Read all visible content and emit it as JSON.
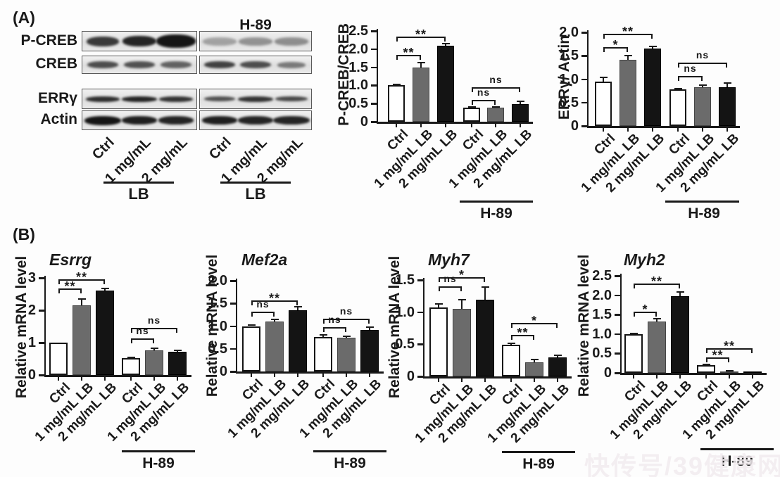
{
  "figure": {
    "panel_a_label": "(A)",
    "panel_b_label": "(B)",
    "watermark": "快传号/39健康网"
  },
  "colors": {
    "bar_white": "#ffffff",
    "bar_gray": "#6b6b6b",
    "bar_black": "#141414",
    "axis": "#1a1a1a"
  },
  "western_blot": {
    "h89_label": "H-89",
    "lb_label": "LB",
    "lane_labels": [
      "Ctrl",
      "1 mg/mL",
      "2 mg/mL"
    ],
    "rows": [
      {
        "label": "P-CREB",
        "lane_intensities": [
          0.82,
          0.92,
          1.0,
          0.3,
          0.38,
          0.4
        ]
      },
      {
        "label": "CREB",
        "lane_intensities": [
          0.72,
          0.7,
          0.62,
          0.78,
          0.72,
          0.5
        ]
      },
      {
        "label": "ERRγ",
        "lane_intensities": [
          0.88,
          0.92,
          0.85,
          0.7,
          0.85,
          0.75
        ]
      },
      {
        "label": "Actin",
        "lane_intensities": [
          1.0,
          0.95,
          0.92,
          0.95,
          0.92,
          0.92
        ]
      }
    ]
  },
  "chart_data": [
    {
      "id": "p-creb-creb",
      "type": "bar",
      "title": "",
      "ylabel": "P-CREB/CREB",
      "categories": [
        "Ctrl",
        "1 mg/mL LB",
        "2 mg/mL LB",
        "Ctrl",
        "1 mg/mL LB",
        "2 mg/mL LB"
      ],
      "values": [
        1.0,
        1.5,
        2.1,
        0.38,
        0.38,
        0.48
      ],
      "errors": [
        0.02,
        0.13,
        0.05,
        0.03,
        0.02,
        0.08
      ],
      "bar_styles": [
        "white",
        "gray",
        "black",
        "white",
        "gray",
        "black"
      ],
      "ymax": 2.5,
      "yticks": [
        {
          "v": 0,
          "label": "0"
        },
        {
          "v": 0.5,
          "label": "0.5"
        },
        {
          "v": 1,
          "label": "1.0"
        },
        {
          "v": 1.5,
          "label": "1.5"
        },
        {
          "v": 2,
          "label": "2.0"
        },
        {
          "v": 2.5,
          "label": "2.5"
        }
      ],
      "group_label": "H-89",
      "significance": [
        {
          "from": 0,
          "to": 1,
          "label": "**",
          "y": 1.84
        },
        {
          "from": 0,
          "to": 2,
          "label": "**",
          "y": 2.35
        },
        {
          "from": 3,
          "to": 4,
          "label": "ns",
          "y": 0.6
        },
        {
          "from": 3,
          "to": 5,
          "label": "ns",
          "y": 0.95
        }
      ]
    },
    {
      "id": "errg-actin",
      "type": "bar",
      "title": "",
      "ylabel": "ERRγ/ Actin",
      "categories": [
        "Ctrl",
        "1 mg/mL LB",
        "2 mg/mL LB",
        "Ctrl",
        "1 mg/mL LB",
        "2 mg/mL LB"
      ],
      "values": [
        0.95,
        1.42,
        1.65,
        0.78,
        0.82,
        0.82
      ],
      "errors": [
        0.09,
        0.08,
        0.05,
        0.02,
        0.05,
        0.1
      ],
      "bar_styles": [
        "white",
        "gray",
        "black",
        "white",
        "gray",
        "black"
      ],
      "ymax": 2.0,
      "yticks": [
        {
          "v": 0,
          "label": "0"
        },
        {
          "v": 0.5,
          "label": "0.5"
        },
        {
          "v": 1,
          "label": "1.0"
        },
        {
          "v": 1.5,
          "label": "1.5"
        },
        {
          "v": 2,
          "label": "2.0"
        }
      ],
      "group_label": "H-89",
      "significance": [
        {
          "from": 0,
          "to": 1,
          "label": "*",
          "y": 1.68
        },
        {
          "from": 0,
          "to": 2,
          "label": "**",
          "y": 1.97
        },
        {
          "from": 3,
          "to": 4,
          "label": "ns",
          "y": 1.07
        },
        {
          "from": 3,
          "to": 5,
          "label": "ns",
          "y": 1.36
        }
      ]
    },
    {
      "id": "esrrg",
      "type": "bar",
      "title": "Esrrg",
      "ylabel": "Relative mRNA level",
      "categories": [
        "Ctrl",
        "1 mg/mL LB",
        "2 mg/mL LB",
        "Ctrl",
        "1 mg/mL LB",
        "2 mg/mL LB"
      ],
      "values": [
        1.0,
        2.15,
        2.6,
        0.52,
        0.76,
        0.72
      ],
      "errors": [
        0.02,
        0.2,
        0.08,
        0.03,
        0.06,
        0.05
      ],
      "bar_styles": [
        "white",
        "gray",
        "black",
        "white",
        "gray",
        "black"
      ],
      "ymax": 3,
      "yticks": [
        {
          "v": 0,
          "label": "0"
        },
        {
          "v": 1,
          "label": "1"
        },
        {
          "v": 2,
          "label": "2"
        },
        {
          "v": 3,
          "label": "3"
        }
      ],
      "group_label": "H-89",
      "significance": [
        {
          "from": 0,
          "to": 1,
          "label": "**",
          "y": 2.68
        },
        {
          "from": 0,
          "to": 2,
          "label": "**",
          "y": 2.95
        },
        {
          "from": 3,
          "to": 4,
          "label": "ns",
          "y": 1.12
        },
        {
          "from": 3,
          "to": 5,
          "label": "ns",
          "y": 1.45
        }
      ]
    },
    {
      "id": "mef2a",
      "type": "bar",
      "title": "Mef2a",
      "ylabel": "Relative mRNA level",
      "categories": [
        "Ctrl",
        "1 mg/mL LB",
        "2 mg/mL LB",
        "Ctrl",
        "1 mg/mL LB",
        "2 mg/mL LB"
      ],
      "values": [
        1.0,
        1.1,
        1.35,
        0.76,
        0.74,
        0.92
      ],
      "errors": [
        0.02,
        0.05,
        0.08,
        0.05,
        0.03,
        0.05
      ],
      "bar_styles": [
        "white",
        "gray",
        "black",
        "white",
        "gray",
        "black"
      ],
      "ymax": 2.0,
      "yticks": [
        {
          "v": 0,
          "label": "0"
        },
        {
          "v": 0.5,
          "label": "0.5"
        },
        {
          "v": 1,
          "label": "1.0"
        },
        {
          "v": 1.5,
          "label": "1.5"
        },
        {
          "v": 2,
          "label": "2.0"
        }
      ],
      "group_label": "H-89",
      "significance": [
        {
          "from": 0,
          "to": 1,
          "label": "ns",
          "y": 1.32
        },
        {
          "from": 0,
          "to": 2,
          "label": "**",
          "y": 1.57
        },
        {
          "from": 3,
          "to": 4,
          "label": "ns",
          "y": 0.97
        },
        {
          "from": 3,
          "to": 5,
          "label": "ns",
          "y": 1.17
        }
      ]
    },
    {
      "id": "myh7",
      "type": "bar",
      "title": "Myh7",
      "ylabel": "Relative mRNA level",
      "categories": [
        "Ctrl",
        "1 mg/mL LB",
        "2 mg/mL LB",
        "Ctrl",
        "1 mg/mL LB",
        "2 mg/mL LB"
      ],
      "values": [
        1.07,
        1.05,
        1.19,
        0.49,
        0.22,
        0.3
      ],
      "errors": [
        0.06,
        0.14,
        0.2,
        0.03,
        0.04,
        0.03
      ],
      "bar_styles": [
        "white",
        "gray",
        "black",
        "white",
        "gray",
        "black"
      ],
      "ymax": 1.5,
      "yticks": [
        {
          "v": 0,
          "label": "0"
        },
        {
          "v": 0.5,
          "label": "0.5"
        },
        {
          "v": 1,
          "label": "1.0"
        },
        {
          "v": 1.5,
          "label": "1.5"
        }
      ],
      "group_label": "H-89",
      "significance": [
        {
          "from": 0,
          "to": 1,
          "label": "ns",
          "y": 1.4
        },
        {
          "from": 0,
          "to": 2,
          "label": "*",
          "y": 1.54
        },
        {
          "from": 3,
          "to": 4,
          "label": "**",
          "y": 0.65
        },
        {
          "from": 3,
          "to": 5,
          "label": "*",
          "y": 0.83
        }
      ]
    },
    {
      "id": "myh2",
      "type": "bar",
      "title": "Myh2",
      "ylabel": "Relative mRNA level",
      "categories": [
        "Ctrl",
        "1 mg/mL LB",
        "2 mg/mL LB",
        "Ctrl",
        "1 mg/mL LB",
        "2 mg/mL LB"
      ],
      "values": [
        1.0,
        1.33,
        1.98,
        0.2,
        0.03,
        0.02
      ],
      "errors": [
        0.02,
        0.06,
        0.1,
        0.02,
        0.02,
        0.01
      ],
      "bar_styles": [
        "white",
        "gray",
        "black",
        "white",
        "gray",
        "black"
      ],
      "ymax": 2.5,
      "yticks": [
        {
          "v": 0,
          "label": "0"
        },
        {
          "v": 0.5,
          "label": "0.5"
        },
        {
          "v": 1,
          "label": "1.0"
        },
        {
          "v": 1.5,
          "label": "1.5"
        },
        {
          "v": 2,
          "label": "2.0"
        },
        {
          "v": 2.5,
          "label": "2.5"
        }
      ],
      "group_label": "H-89",
      "significance": [
        {
          "from": 0,
          "to": 1,
          "label": "*",
          "y": 1.58
        },
        {
          "from": 0,
          "to": 2,
          "label": "**",
          "y": 2.3
        },
        {
          "from": 3,
          "to": 4,
          "label": "**",
          "y": 0.4
        },
        {
          "from": 3,
          "to": 5,
          "label": "**",
          "y": 0.64
        }
      ]
    }
  ]
}
